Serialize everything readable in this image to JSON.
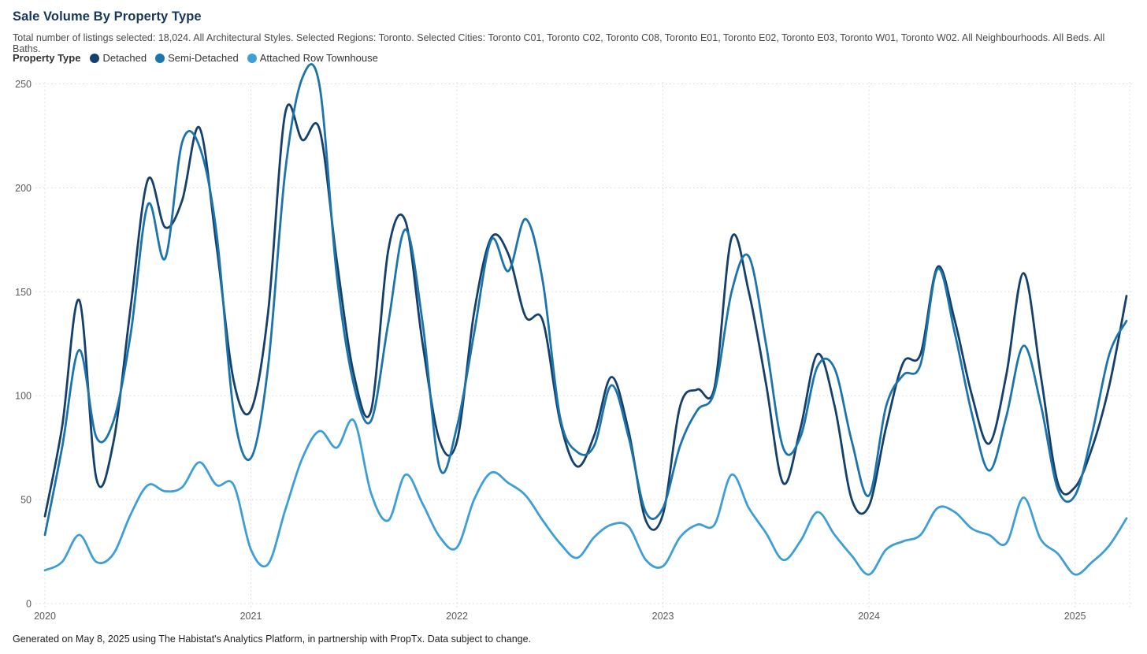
{
  "page": {
    "title": "Sale Volume By Property Type",
    "subtitle": "Total number of listings selected: 18,024. All Architectural Styles. Selected Regions: Toronto. Selected Cities: Toronto C01, Toronto C02, Toronto C08, Toronto E01, Toronto E02, Toronto E03, Toronto W01, Toronto W02. All Neighbourhoods. All Beds. All Baths.",
    "footer": "Generated on May 8, 2025 using The Habistat's Analytics Platform, in partnership with PropTx. Data subject to change."
  },
  "legend": {
    "label": "Property Type",
    "items": [
      {
        "label": "Detached",
        "color": "#15406B"
      },
      {
        "label": "Semi-Detached",
        "color": "#1C74AC"
      },
      {
        "label": "Attached Row Townhouse",
        "color": "#3E9FD6"
      }
    ]
  },
  "chart_data": {
    "type": "line",
    "title": "Sale Volume By Property Type",
    "x_unit": "month",
    "x_start": "2020-01",
    "x_end": "2025-04",
    "n_points": 64,
    "x_tick_labels": [
      "2020",
      "2021",
      "2022",
      "2023",
      "2024",
      "2025"
    ],
    "x_tick_month_indices": [
      0,
      12,
      24,
      36,
      48,
      60
    ],
    "y_ticks": [
      0,
      50,
      100,
      150,
      200,
      250
    ],
    "y_tick_labels": [
      "0",
      "50",
      "100",
      "150",
      "200",
      "250"
    ],
    "ylim": [
      0,
      256
    ],
    "grid": "dotted",
    "grid_color": "#d8d8d8",
    "axis_label_color": "#595959",
    "legend_position": "top-left",
    "line_width": 2.8,
    "series": [
      {
        "name": "Detached",
        "color": "#15406B",
        "values": [
          42,
          85,
          146,
          60,
          78,
          143,
          204,
          181,
          194,
          229,
          172,
          107,
          93,
          140,
          236,
          223,
          228,
          165,
          110,
          93,
          170,
          184,
          125,
          78,
          78,
          140,
          176,
          168,
          138,
          136,
          88,
          66,
          81,
          109,
          83,
          40,
          43,
          95,
          103,
          104,
          176,
          150,
          106,
          58,
          84,
          120,
          95,
          50,
          47,
          85,
          116,
          120,
          162,
          136,
          100,
          77,
          110,
          159,
          110,
          58,
          56,
          75,
          105,
          148
        ]
      },
      {
        "name": "Semi-Detached",
        "color": "#1C74AC",
        "values": [
          33,
          75,
          122,
          80,
          88,
          130,
          192,
          166,
          222,
          220,
          178,
          92,
          70,
          114,
          208,
          253,
          249,
          158,
          105,
          88,
          135,
          180,
          135,
          65,
          85,
          130,
          175,
          160,
          185,
          155,
          90,
          73,
          76,
          105,
          80,
          44,
          46,
          76,
          93,
          102,
          150,
          167,
          125,
          75,
          80,
          114,
          113,
          78,
          52,
          95,
          110,
          115,
          161,
          130,
          91,
          64,
          90,
          124,
          96,
          55,
          52,
          82,
          120,
          136
        ]
      },
      {
        "name": "Attached Row Townhouse",
        "color": "#3E9FD6",
        "values": [
          16,
          20,
          33,
          20,
          24,
          43,
          57,
          54,
          56,
          68,
          57,
          57,
          26,
          19,
          45,
          70,
          83,
          75,
          88,
          53,
          40,
          62,
          48,
          32,
          27,
          50,
          63,
          58,
          52,
          40,
          29,
          22,
          32,
          38,
          37,
          21,
          18,
          32,
          38,
          38,
          62,
          46,
          34,
          21,
          30,
          44,
          33,
          23,
          14,
          26,
          30,
          33,
          46,
          44,
          36,
          33,
          29,
          51,
          31,
          24,
          14,
          20,
          28,
          41
        ]
      }
    ]
  }
}
